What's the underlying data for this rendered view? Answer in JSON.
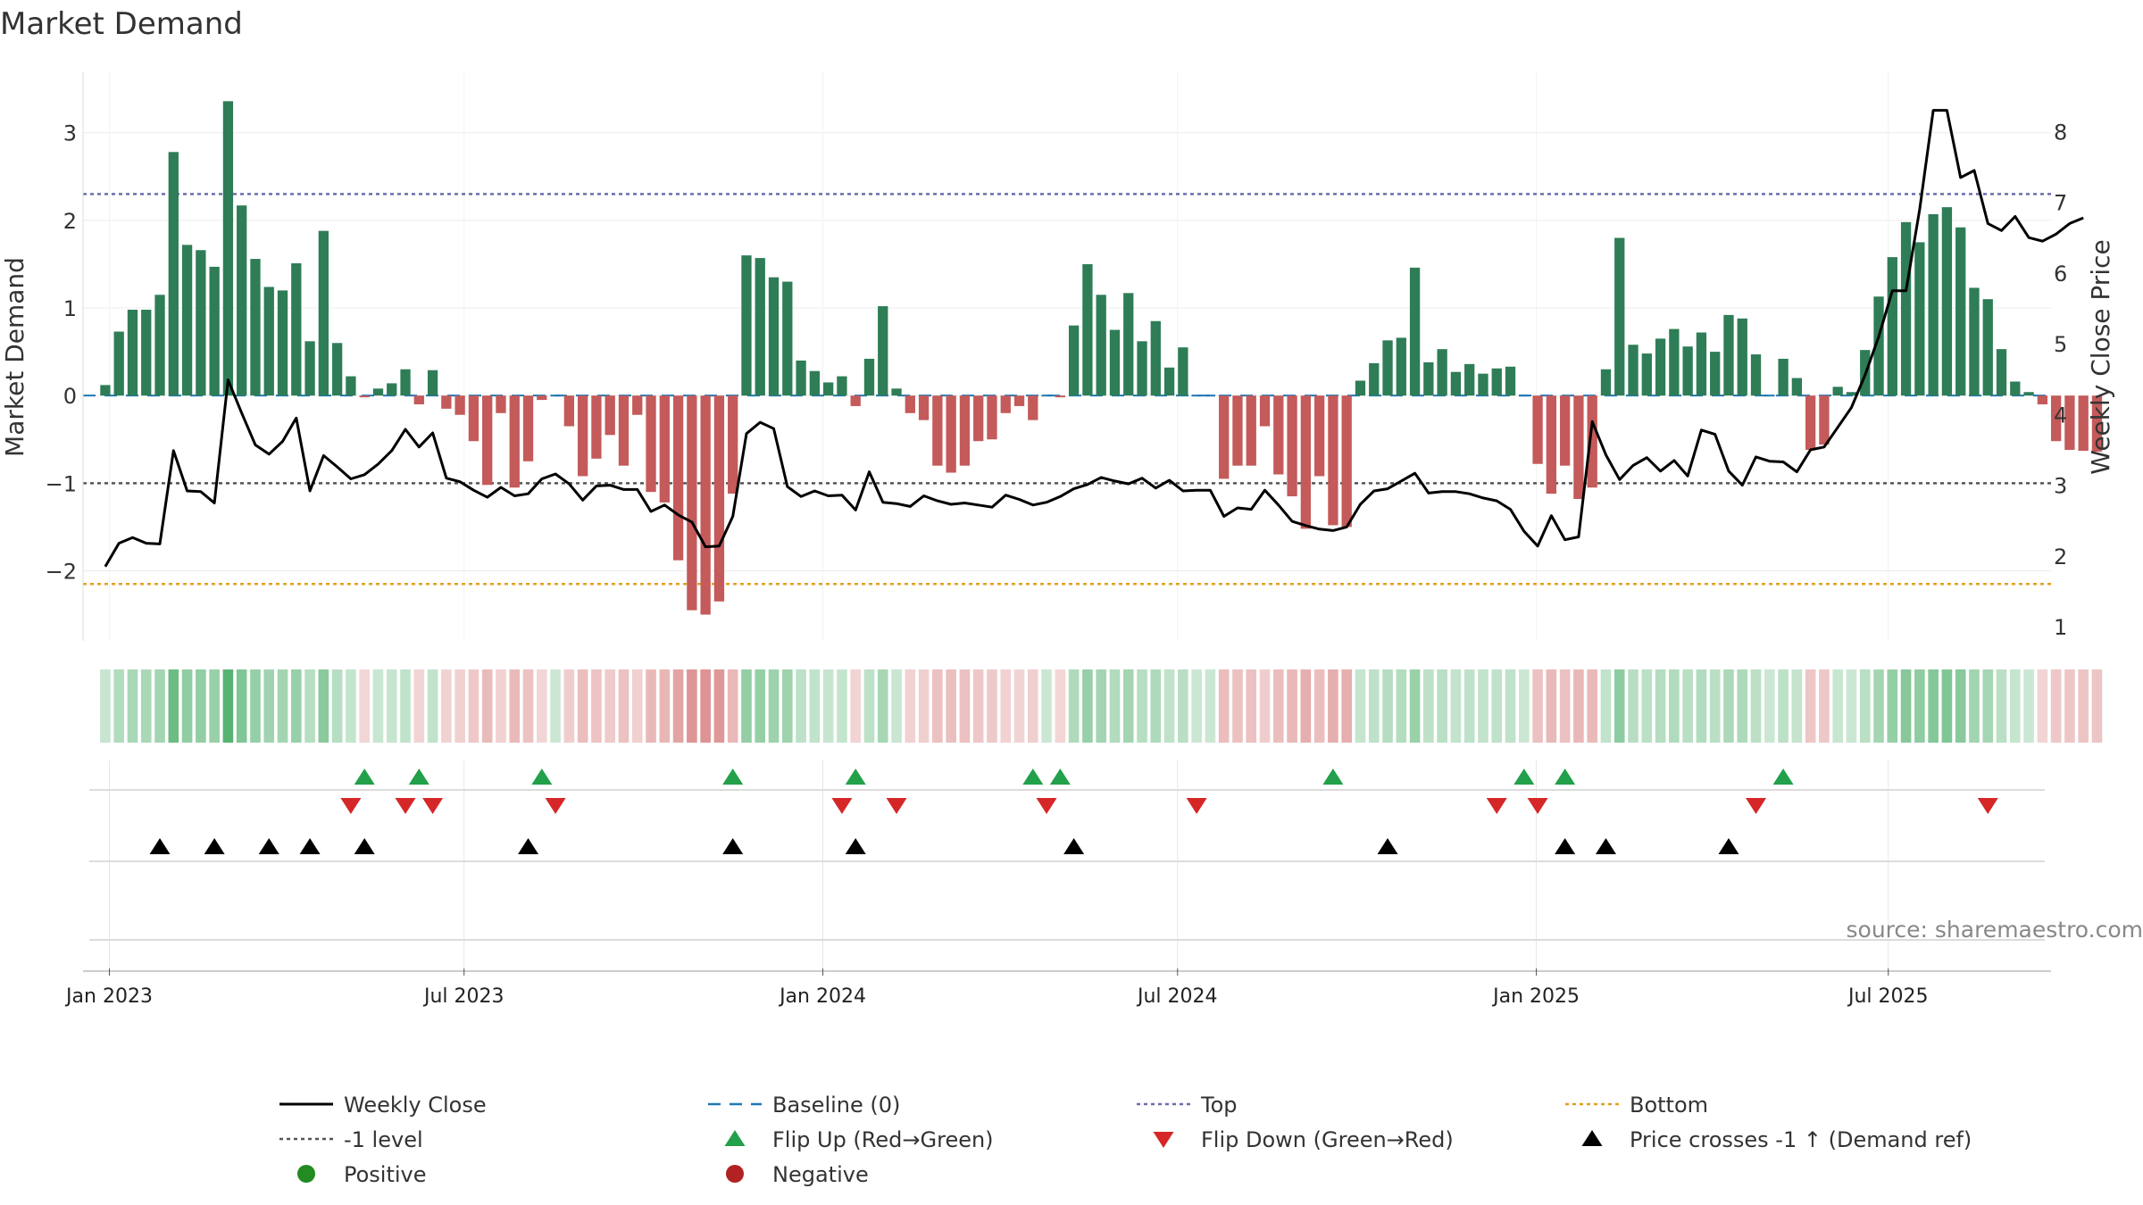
{
  "colors": {
    "positive_bar": "#2e7d57",
    "negative_bar": "#c45a5a",
    "price_line": "#000000",
    "baseline": "#1f77b4",
    "top_line": "#6c6cb0",
    "bottom_line": "#e0a020",
    "minus1_line": "#555555",
    "flip_up": "#22a04a",
    "flip_down": "#d62728",
    "price_cross": "#000000",
    "legend_positive": "#228b22",
    "legend_negative": "#b22222"
  },
  "chart_data": {
    "type": "bar",
    "title": "Market Demand",
    "ylabel": "Market Demand",
    "y2label": "Weekly Close Price",
    "ylim": [
      -2.8,
      3.7
    ],
    "y2lim": [
      0.8,
      8.85
    ],
    "y_ticks": [
      -2,
      -1,
      0,
      1,
      2,
      3
    ],
    "y_tick_labels": [
      "−2",
      "−1",
      "0",
      "1",
      "2",
      "3"
    ],
    "y2_ticks": [
      1,
      2,
      3,
      4,
      5,
      6,
      7,
      8
    ],
    "y2_tick_labels": [
      "1",
      "2",
      "3",
      "4",
      "5",
      "6",
      "7",
      "8"
    ],
    "x_range_weeks": [
      -1.5,
      142.5
    ],
    "x_ticks": [
      {
        "week": 0.3,
        "label": "Jan 2023"
      },
      {
        "week": 26.3,
        "label": "Jul 2023"
      },
      {
        "week": 52.6,
        "label": "Jan 2024"
      },
      {
        "week": 78.6,
        "label": "Jul 2024"
      },
      {
        "week": 104.9,
        "label": "Jan 2025"
      },
      {
        "week": 130.7,
        "label": "Jul 2025"
      }
    ],
    "reference_lines": {
      "top": 2.3,
      "bottom": -2.15,
      "minus1": -1,
      "baseline": 0
    },
    "demand": [
      0.12,
      0.73,
      0.98,
      0.98,
      1.15,
      2.78,
      1.72,
      1.66,
      1.47,
      3.36,
      2.17,
      1.56,
      1.24,
      1.2,
      1.51,
      0.62,
      1.88,
      0.6,
      0.22,
      -0.02,
      0.08,
      0.14,
      0.3,
      -0.1,
      0.29,
      -0.15,
      -0.22,
      -0.52,
      -1.02,
      -0.2,
      -1.05,
      -0.75,
      -0.05,
      0,
      -0.35,
      -0.92,
      -0.72,
      -0.45,
      -0.8,
      -0.22,
      -1.1,
      -1.22,
      -1.88,
      -2.45,
      -2.5,
      -2.35,
      -1.12,
      1.6,
      1.57,
      1.35,
      1.3,
      0.4,
      0.28,
      0.15,
      0.22,
      -0.12,
      0.42,
      1.02,
      0.08,
      -0.2,
      -0.28,
      -0.8,
      -0.88,
      -0.8,
      -0.52,
      -0.5,
      -0.2,
      -0.12,
      -0.28,
      0,
      -0.02,
      0.8,
      1.5,
      1.15,
      0.75,
      1.17,
      0.62,
      0.85,
      0.32,
      0.55,
      0,
      0,
      -0.95,
      -0.8,
      -0.8,
      -0.35,
      -0.9,
      -1.15,
      -1.52,
      -0.92,
      -1.48,
      -1.5,
      0.17,
      0.37,
      0.63,
      0.66,
      1.46,
      0.38,
      0.53,
      0.27,
      0.36,
      0.25,
      0.31,
      0.33,
      0,
      -0.78,
      -1.12,
      -0.8,
      -1.18,
      -1.05,
      0.3,
      1.8,
      0.58,
      0.48,
      0.65,
      0.76,
      0.56,
      0.72,
      0.5,
      0.92,
      0.88,
      0.47,
      0,
      0.42,
      0.2,
      -0.62,
      -0.56,
      0.1,
      0.04,
      0.52,
      1.13,
      1.58,
      1.98,
      1.75,
      2.07,
      2.15,
      1.92,
      1.23,
      1.1,
      0.53,
      0.16,
      0.04,
      -0.1,
      -0.52,
      -0.62,
      -0.63,
      -0.64
    ],
    "weekly_close": [
      1.85,
      2.18,
      2.26,
      2.18,
      2.17,
      3.49,
      2.92,
      2.91,
      2.75,
      4.49,
      4.02,
      3.57,
      3.44,
      3.62,
      3.95,
      2.92,
      3.42,
      3.26,
      3.09,
      3.15,
      3.3,
      3.49,
      3.79,
      3.54,
      3.74,
      3.1,
      3.05,
      2.93,
      2.83,
      2.97,
      2.85,
      2.88,
      3.09,
      3.16,
      3.02,
      2.79,
      2.99,
      3,
      2.94,
      2.94,
      2.63,
      2.72,
      2.58,
      2.48,
      2.13,
      2.14,
      2.56,
      3.73,
      3.89,
      3.8,
      2.98,
      2.84,
      2.92,
      2.85,
      2.86,
      2.65,
      3.19,
      2.76,
      2.74,
      2.7,
      2.85,
      2.78,
      2.73,
      2.75,
      2.72,
      2.69,
      2.86,
      2.8,
      2.72,
      2.76,
      2.84,
      2.95,
      3.01,
      3.11,
      3.06,
      3.02,
      3.1,
      2.96,
      3.07,
      2.92,
      2.93,
      2.93,
      2.56,
      2.68,
      2.66,
      2.93,
      2.72,
      2.49,
      2.43,
      2.38,
      2.36,
      2.41,
      2.73,
      2.92,
      2.95,
      3.06,
      3.17,
      2.89,
      2.91,
      2.91,
      2.88,
      2.82,
      2.78,
      2.66,
      2.35,
      2.14,
      2.57,
      2.23,
      2.27,
      3.9,
      3.43,
      3.08,
      3.28,
      3.39,
      3.2,
      3.35,
      3.13,
      3.78,
      3.72,
      3.2,
      3,
      3.4,
      3.34,
      3.33,
      3.19,
      3.5,
      3.54,
      3.82,
      4.1,
      4.56,
      5.1,
      5.75,
      5.75,
      6.9,
      8.3,
      8.3,
      7.35,
      7.45,
      6.7,
      6.6,
      6.8,
      6.5,
      6.45,
      6.55,
      6.7,
      6.78
    ],
    "flip_up_weeks": [
      19,
      23,
      32,
      46,
      55,
      68,
      70,
      90,
      104,
      107,
      123
    ],
    "flip_down_weeks": [
      18,
      22,
      24,
      33,
      54,
      58,
      69,
      80,
      102,
      105,
      121,
      138
    ],
    "price_cross_weeks": [
      4,
      8,
      12,
      15,
      19,
      31,
      46,
      55,
      71,
      94,
      107,
      110,
      119
    ],
    "legend": [
      {
        "label": "Weekly Close",
        "marker": "line"
      },
      {
        "label": "Baseline (0)",
        "marker": "dash"
      },
      {
        "label": "Top",
        "marker": "dots"
      },
      {
        "label": "Bottom",
        "marker": "dots"
      },
      {
        "label": "-1 level",
        "marker": "dots"
      },
      {
        "label": "Flip Up (Red→Green)",
        "marker": "triangle-up"
      },
      {
        "label": "Flip Down (Green→Red)",
        "marker": "triangle-down"
      },
      {
        "label": "Price crosses -1 ↑ (Demand ref)",
        "marker": "triangle-up"
      },
      {
        "label": "Positive",
        "marker": "circle"
      },
      {
        "label": "Negative",
        "marker": "circle"
      }
    ]
  },
  "source_text": "source: sharemaestro.com"
}
